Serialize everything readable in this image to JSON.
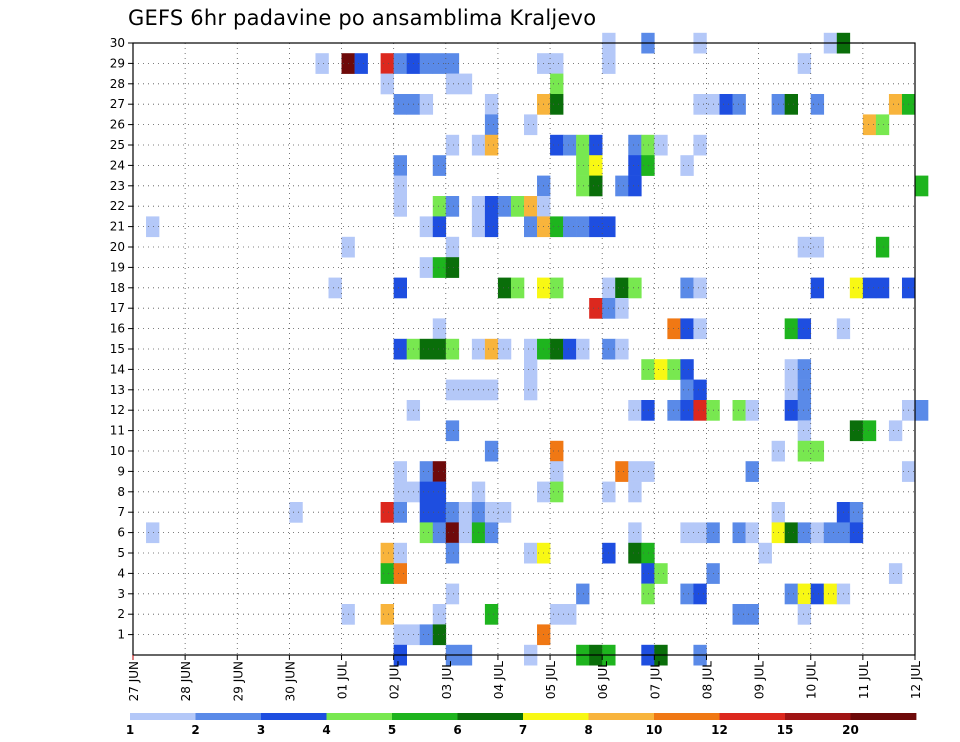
{
  "title": "GEFS 6hr padavine po ansamblima Kraljevo",
  "chart_data": {
    "type": "heatmap",
    "title": "GEFS 6hr padavine po ansamblima Kraljevo",
    "xlabel": "",
    "ylabel": "",
    "x_ticks": [
      "27 JUN",
      "28 JUN",
      "29 JUN",
      "30 JUN",
      "01 JUL",
      "02 JUL",
      "03 JUL",
      "04 JUL",
      "05 JUL",
      "06 JUL",
      "07 JUL",
      "08 JUL",
      "09 JUL",
      "10 JUL",
      "11 JUL",
      "12 JUL"
    ],
    "xlim": [
      "27 JUN",
      "12 JUL"
    ],
    "x_step_hours": 6,
    "y_ticks": [
      1,
      2,
      3,
      4,
      5,
      6,
      7,
      8,
      9,
      10,
      11,
      12,
      13,
      14,
      15,
      16,
      17,
      18,
      19,
      20,
      21,
      22,
      23,
      24,
      25,
      26,
      27,
      28,
      29,
      30
    ],
    "ylim": [
      0,
      30
    ],
    "grid": true,
    "colorbar": {
      "placement": "bottom",
      "levels": [
        "1",
        "2",
        "3",
        "4",
        "5",
        "6",
        "7",
        "8",
        "10",
        "12",
        "15",
        "20"
      ],
      "colors": [
        "#b4c8f8",
        "#5a8ae8",
        "#1e4ee0",
        "#78e850",
        "#1eb41e",
        "#0a6e0a",
        "#f8f814",
        "#f8b43c",
        "#f07814",
        "#dc281e",
        "#a01414",
        "#6e0a0a"
      ]
    },
    "cells": [
      [
        "30 JUN 12Z",
        29,
        1
      ],
      [
        "01 JUL 00Z",
        29,
        20
      ],
      [
        "01 JUL 06Z",
        29,
        3
      ],
      [
        "01 JUL 18Z",
        29,
        12
      ],
      [
        "02 JUL 00Z",
        29,
        2
      ],
      [
        "02 JUL 06Z",
        29,
        3
      ],
      [
        "02 JUL 12Z",
        29,
        2
      ],
      [
        "02 JUL 18Z",
        29,
        2
      ],
      [
        "03 JUL 00Z",
        29,
        2
      ],
      [
        "04 JUL 18Z",
        29,
        1
      ],
      [
        "05 JUL 00Z",
        29,
        1
      ],
      [
        "06 JUL 00Z",
        29,
        1
      ],
      [
        "09 JUL 18Z",
        29,
        1
      ],
      [
        "06 JUL 00Z",
        30,
        1
      ],
      [
        "06 JUL 18Z",
        30,
        2
      ],
      [
        "07 JUL 18Z",
        30,
        1
      ],
      [
        "10 JUL 06Z",
        30,
        1
      ],
      [
        "10 JUL 12Z",
        30,
        6
      ],
      [
        "01 JUL 18Z",
        28,
        1
      ],
      [
        "03 JUL 00Z",
        28,
        1
      ],
      [
        "03 JUL 06Z",
        28,
        1
      ],
      [
        "05 JUL 00Z",
        28,
        4
      ],
      [
        "02 JUL 00Z",
        27,
        2
      ],
      [
        "02 JUL 06Z",
        27,
        2
      ],
      [
        "02 JUL 12Z",
        27,
        1
      ],
      [
        "03 JUL 18Z",
        27,
        1
      ],
      [
        "04 JUL 18Z",
        27,
        8
      ],
      [
        "05 JUL 00Z",
        27,
        6
      ],
      [
        "07 JUL 18Z",
        27,
        1
      ],
      [
        "08 JUL 00Z",
        27,
        1
      ],
      [
        "08 JUL 06Z",
        27,
        3
      ],
      [
        "08 JUL 12Z",
        27,
        2
      ],
      [
        "09 JUL 06Z",
        27,
        2
      ],
      [
        "09 JUL 12Z",
        27,
        6
      ],
      [
        "10 JUL 00Z",
        27,
        2
      ],
      [
        "11 JUL 12Z",
        27,
        8
      ],
      [
        "11 JUL 18Z",
        27,
        5
      ],
      [
        "03 JUL 18Z",
        26,
        2
      ],
      [
        "04 JUL 12Z",
        26,
        1
      ],
      [
        "11 JUL 00Z",
        26,
        8
      ],
      [
        "11 JUL 06Z",
        26,
        4
      ],
      [
        "03 JUL 00Z",
        25,
        1
      ],
      [
        "03 JUL 12Z",
        25,
        1
      ],
      [
        "03 JUL 18Z",
        25,
        8
      ],
      [
        "05 JUL 00Z",
        25,
        3
      ],
      [
        "05 JUL 06Z",
        25,
        2
      ],
      [
        "05 JUL 12Z",
        25,
        4
      ],
      [
        "05 JUL 18Z",
        25,
        3
      ],
      [
        "06 JUL 12Z",
        25,
        2
      ],
      [
        "06 JUL 18Z",
        25,
        4
      ],
      [
        "07 JUL 00Z",
        25,
        1
      ],
      [
        "07 JUL 18Z",
        25,
        1
      ],
      [
        "02 JUL 00Z",
        24,
        2
      ],
      [
        "02 JUL 18Z",
        24,
        2
      ],
      [
        "05 JUL 12Z",
        24,
        4
      ],
      [
        "05 JUL 18Z",
        24,
        7
      ],
      [
        "06 JUL 12Z",
        24,
        3
      ],
      [
        "06 JUL 18Z",
        24,
        5
      ],
      [
        "07 JUL 12Z",
        24,
        1
      ],
      [
        "02 JUL 00Z",
        23,
        1
      ],
      [
        "04 JUL 18Z",
        23,
        2
      ],
      [
        "05 JUL 12Z",
        23,
        4
      ],
      [
        "05 JUL 18Z",
        23,
        6
      ],
      [
        "06 JUL 06Z",
        23,
        2
      ],
      [
        "06 JUL 12Z",
        23,
        3
      ],
      [
        "12 JUL 00Z",
        23,
        5
      ],
      [
        "02 JUL 00Z",
        22,
        1
      ],
      [
        "02 JUL 18Z",
        22,
        4
      ],
      [
        "03 JUL 00Z",
        22,
        2
      ],
      [
        "03 JUL 12Z",
        22,
        1
      ],
      [
        "03 JUL 18Z",
        22,
        3
      ],
      [
        "04 JUL 00Z",
        22,
        2
      ],
      [
        "04 JUL 06Z",
        22,
        4
      ],
      [
        "04 JUL 12Z",
        22,
        8
      ],
      [
        "04 JUL 18Z",
        22,
        1
      ],
      [
        "27 JUN 06Z",
        21,
        1
      ],
      [
        "02 JUL 12Z",
        21,
        1
      ],
      [
        "02 JUL 18Z",
        21,
        3
      ],
      [
        "03 JUL 12Z",
        21,
        1
      ],
      [
        "03 JUL 18Z",
        21,
        3
      ],
      [
        "04 JUL 12Z",
        21,
        2
      ],
      [
        "04 JUL 18Z",
        21,
        8
      ],
      [
        "05 JUL 00Z",
        21,
        5
      ],
      [
        "05 JUL 06Z",
        21,
        2
      ],
      [
        "05 JUL 12Z",
        21,
        2
      ],
      [
        "05 JUL 18Z",
        21,
        3
      ],
      [
        "06 JUL 00Z",
        21,
        3
      ],
      [
        "01 JUL 00Z",
        20,
        1
      ],
      [
        "03 JUL 00Z",
        20,
        1
      ],
      [
        "09 JUL 18Z",
        20,
        1
      ],
      [
        "10 JUL 00Z",
        20,
        1
      ],
      [
        "11 JUL 06Z",
        20,
        5
      ],
      [
        "02 JUL 12Z",
        19,
        1
      ],
      [
        "02 JUL 18Z",
        19,
        5
      ],
      [
        "03 JUL 00Z",
        19,
        6
      ],
      [
        "30 JUN 18Z",
        18,
        1
      ],
      [
        "02 JUL 00Z",
        18,
        3
      ],
      [
        "04 JUL 00Z",
        18,
        6
      ],
      [
        "04 JUL 06Z",
        18,
        4
      ],
      [
        "04 JUL 18Z",
        18,
        7
      ],
      [
        "05 JUL 00Z",
        18,
        4
      ],
      [
        "06 JUL 00Z",
        18,
        1
      ],
      [
        "06 JUL 06Z",
        18,
        6
      ],
      [
        "06 JUL 12Z",
        18,
        4
      ],
      [
        "07 JUL 12Z",
        18,
        2
      ],
      [
        "07 JUL 18Z",
        18,
        1
      ],
      [
        "10 JUL 00Z",
        18,
        3
      ],
      [
        "10 JUL 18Z",
        18,
        7
      ],
      [
        "11 JUL 00Z",
        18,
        3
      ],
      [
        "11 JUL 06Z",
        18,
        3
      ],
      [
        "11 JUL 18Z",
        18,
        3
      ],
      [
        "05 JUL 18Z",
        17,
        12
      ],
      [
        "06 JUL 00Z",
        17,
        2
      ],
      [
        "06 JUL 06Z",
        17,
        1
      ],
      [
        "02 JUL 18Z",
        16,
        1
      ],
      [
        "07 JUL 06Z",
        16,
        10
      ],
      [
        "07 JUL 12Z",
        16,
        3
      ],
      [
        "07 JUL 18Z",
        16,
        1
      ],
      [
        "09 JUL 12Z",
        16,
        5
      ],
      [
        "09 JUL 18Z",
        16,
        3
      ],
      [
        "10 JUL 12Z",
        16,
        1
      ],
      [
        "02 JUL 00Z",
        15,
        3
      ],
      [
        "02 JUL 06Z",
        15,
        4
      ],
      [
        "02 JUL 12Z",
        15,
        6
      ],
      [
        "02 JUL 18Z",
        15,
        6
      ],
      [
        "03 JUL 00Z",
        15,
        4
      ],
      [
        "03 JUL 12Z",
        15,
        1
      ],
      [
        "03 JUL 18Z",
        15,
        8
      ],
      [
        "04 JUL 00Z",
        15,
        1
      ],
      [
        "04 JUL 12Z",
        15,
        1
      ],
      [
        "04 JUL 18Z",
        15,
        5
      ],
      [
        "05 JUL 00Z",
        15,
        6
      ],
      [
        "05 JUL 06Z",
        15,
        3
      ],
      [
        "05 JUL 12Z",
        15,
        1
      ],
      [
        "06 JUL 00Z",
        15,
        2
      ],
      [
        "06 JUL 06Z",
        15,
        1
      ],
      [
        "04 JUL 12Z",
        14,
        1
      ],
      [
        "06 JUL 18Z",
        14,
        4
      ],
      [
        "07 JUL 00Z",
        14,
        7
      ],
      [
        "07 JUL 06Z",
        14,
        4
      ],
      [
        "07 JUL 12Z",
        14,
        3
      ],
      [
        "09 JUL 12Z",
        14,
        1
      ],
      [
        "09 JUL 18Z",
        14,
        2
      ],
      [
        "03 JUL 00Z",
        13,
        1
      ],
      [
        "03 JUL 06Z",
        13,
        1
      ],
      [
        "03 JUL 12Z",
        13,
        1
      ],
      [
        "03 JUL 18Z",
        13,
        1
      ],
      [
        "04 JUL 12Z",
        13,
        1
      ],
      [
        "07 JUL 12Z",
        13,
        2
      ],
      [
        "07 JUL 18Z",
        13,
        3
      ],
      [
        "09 JUL 12Z",
        13,
        1
      ],
      [
        "09 JUL 18Z",
        13,
        2
      ],
      [
        "02 JUL 06Z",
        12,
        1
      ],
      [
        "06 JUL 12Z",
        12,
        1
      ],
      [
        "06 JUL 18Z",
        12,
        3
      ],
      [
        "07 JUL 06Z",
        12,
        2
      ],
      [
        "07 JUL 12Z",
        12,
        3
      ],
      [
        "07 JUL 18Z",
        12,
        12
      ],
      [
        "08 JUL 00Z",
        12,
        4
      ],
      [
        "08 JUL 12Z",
        12,
        4
      ],
      [
        "08 JUL 18Z",
        12,
        1
      ],
      [
        "09 JUL 12Z",
        12,
        3
      ],
      [
        "09 JUL 18Z",
        12,
        2
      ],
      [
        "11 JUL 18Z",
        12,
        1
      ],
      [
        "12 JUL 00Z",
        12,
        2
      ],
      [
        "03 JUL 00Z",
        11,
        2
      ],
      [
        "09 JUL 18Z",
        11,
        1
      ],
      [
        "10 JUL 18Z",
        11,
        6
      ],
      [
        "11 JUL 00Z",
        11,
        5
      ],
      [
        "11 JUL 12Z",
        11,
        1
      ],
      [
        "03 JUL 18Z",
        10,
        2
      ],
      [
        "05 JUL 00Z",
        10,
        10
      ],
      [
        "09 JUL 06Z",
        10,
        1
      ],
      [
        "09 JUL 18Z",
        10,
        4
      ],
      [
        "10 JUL 00Z",
        10,
        4
      ],
      [
        "02 JUL 00Z",
        9,
        1
      ],
      [
        "02 JUL 12Z",
        9,
        2
      ],
      [
        "02 JUL 18Z",
        9,
        20
      ],
      [
        "05 JUL 00Z",
        9,
        1
      ],
      [
        "06 JUL 06Z",
        9,
        10
      ],
      [
        "06 JUL 12Z",
        9,
        1
      ],
      [
        "06 JUL 18Z",
        9,
        1
      ],
      [
        "08 JUL 18Z",
        9,
        2
      ],
      [
        "11 JUL 18Z",
        9,
        1
      ],
      [
        "02 JUL 00Z",
        8,
        1
      ],
      [
        "02 JUL 06Z",
        8,
        1
      ],
      [
        "02 JUL 12Z",
        8,
        3
      ],
      [
        "02 JUL 18Z",
        8,
        3
      ],
      [
        "03 JUL 12Z",
        8,
        1
      ],
      [
        "04 JUL 18Z",
        8,
        1
      ],
      [
        "05 JUL 00Z",
        8,
        4
      ],
      [
        "06 JUL 00Z",
        8,
        1
      ],
      [
        "06 JUL 12Z",
        8,
        1
      ],
      [
        "30 JUN 00Z",
        7,
        1
      ],
      [
        "01 JUL 18Z",
        7,
        12
      ],
      [
        "02 JUL 00Z",
        7,
        2
      ],
      [
        "02 JUL 12Z",
        7,
        3
      ],
      [
        "02 JUL 18Z",
        7,
        3
      ],
      [
        "03 JUL 00Z",
        7,
        2
      ],
      [
        "03 JUL 06Z",
        7,
        1
      ],
      [
        "03 JUL 12Z",
        7,
        2
      ],
      [
        "03 JUL 18Z",
        7,
        1
      ],
      [
        "04 JUL 00Z",
        7,
        1
      ],
      [
        "09 JUL 06Z",
        7,
        1
      ],
      [
        "10 JUL 12Z",
        7,
        3
      ],
      [
        "10 JUL 18Z",
        7,
        2
      ],
      [
        "27 JUN 06Z",
        6,
        1
      ],
      [
        "02 JUL 12Z",
        6,
        4
      ],
      [
        "02 JUL 18Z",
        6,
        2
      ],
      [
        "03 JUL 00Z",
        6,
        20
      ],
      [
        "03 JUL 06Z",
        6,
        1
      ],
      [
        "03 JUL 12Z",
        6,
        5
      ],
      [
        "03 JUL 18Z",
        6,
        2
      ],
      [
        "06 JUL 12Z",
        6,
        1
      ],
      [
        "07 JUL 12Z",
        6,
        1
      ],
      [
        "07 JUL 18Z",
        6,
        1
      ],
      [
        "08 JUL 00Z",
        6,
        2
      ],
      [
        "08 JUL 12Z",
        6,
        2
      ],
      [
        "08 JUL 18Z",
        6,
        1
      ],
      [
        "09 JUL 06Z",
        6,
        7
      ],
      [
        "09 JUL 12Z",
        6,
        6
      ],
      [
        "09 JUL 18Z",
        6,
        2
      ],
      [
        "10 JUL 00Z",
        6,
        1
      ],
      [
        "10 JUL 06Z",
        6,
        2
      ],
      [
        "10 JUL 12Z",
        6,
        2
      ],
      [
        "10 JUL 18Z",
        6,
        3
      ],
      [
        "01 JUL 18Z",
        5,
        8
      ],
      [
        "02 JUL 00Z",
        5,
        1
      ],
      [
        "03 JUL 00Z",
        5,
        2
      ],
      [
        "04 JUL 12Z",
        5,
        1
      ],
      [
        "04 JUL 18Z",
        5,
        7
      ],
      [
        "06 JUL 00Z",
        5,
        3
      ],
      [
        "06 JUL 12Z",
        5,
        6
      ],
      [
        "06 JUL 18Z",
        5,
        5
      ],
      [
        "09 JUL 00Z",
        5,
        1
      ],
      [
        "01 JUL 18Z",
        4,
        5
      ],
      [
        "02 JUL 00Z",
        4,
        10
      ],
      [
        "06 JUL 18Z",
        4,
        3
      ],
      [
        "07 JUL 00Z",
        4,
        4
      ],
      [
        "08 JUL 00Z",
        4,
        2
      ],
      [
        "11 JUL 12Z",
        4,
        1
      ],
      [
        "03 JUL 00Z",
        3,
        1
      ],
      [
        "05 JUL 12Z",
        3,
        2
      ],
      [
        "06 JUL 18Z",
        3,
        4
      ],
      [
        "07 JUL 12Z",
        3,
        2
      ],
      [
        "07 JUL 18Z",
        3,
        3
      ],
      [
        "09 JUL 12Z",
        3,
        2
      ],
      [
        "09 JUL 18Z",
        3,
        7
      ],
      [
        "10 JUL 00Z",
        3,
        3
      ],
      [
        "10 JUL 06Z",
        3,
        7
      ],
      [
        "10 JUL 12Z",
        3,
        1
      ],
      [
        "01 JUL 00Z",
        2,
        1
      ],
      [
        "01 JUL 18Z",
        2,
        8
      ],
      [
        "02 JUL 18Z",
        2,
        1
      ],
      [
        "03 JUL 18Z",
        2,
        5
      ],
      [
        "05 JUL 00Z",
        2,
        1
      ],
      [
        "05 JUL 06Z",
        2,
        1
      ],
      [
        "08 JUL 12Z",
        2,
        2
      ],
      [
        "08 JUL 18Z",
        2,
        2
      ],
      [
        "09 JUL 18Z",
        2,
        1
      ],
      [
        "02 JUL 00Z",
        1,
        1
      ],
      [
        "02 JUL 06Z",
        1,
        1
      ],
      [
        "02 JUL 12Z",
        1,
        2
      ],
      [
        "02 JUL 18Z",
        1,
        6
      ],
      [
        "04 JUL 18Z",
        1,
        10
      ],
      [
        "02 JUL 00Z",
        0,
        3
      ],
      [
        "03 JUL 00Z",
        0,
        2
      ],
      [
        "03 JUL 06Z",
        0,
        2
      ],
      [
        "04 JUL 12Z",
        0,
        1
      ],
      [
        "05 JUL 12Z",
        0,
        5
      ],
      [
        "05 JUL 18Z",
        0,
        6
      ],
      [
        "06 JUL 00Z",
        0,
        5
      ],
      [
        "06 JUL 18Z",
        0,
        3
      ],
      [
        "07 JUL 00Z",
        0,
        6
      ],
      [
        "07 JUL 18Z",
        0,
        2
      ]
    ]
  }
}
